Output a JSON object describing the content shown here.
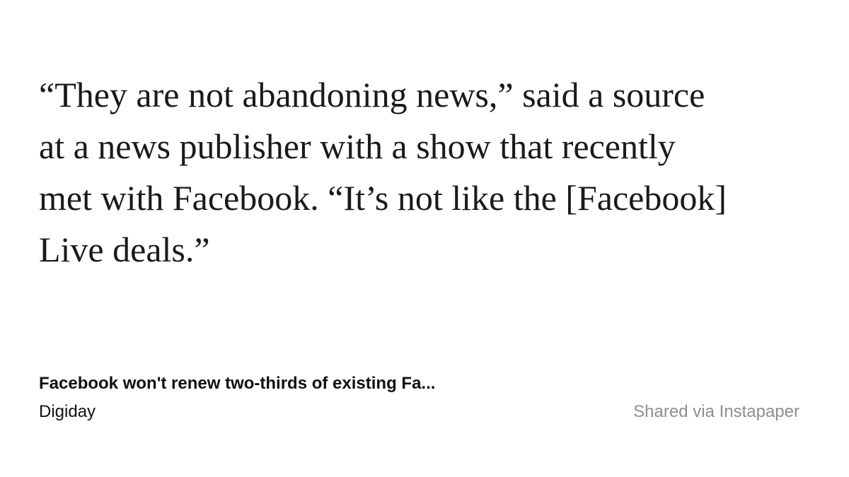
{
  "quote": {
    "lines": [
      "“They are not abandoning news,” said a source",
      "at a news publisher with a show that recently",
      "met with Facebook. “It’s not like the [Facebook]",
      "Live deals.”"
    ]
  },
  "footer": {
    "article_title": "Facebook won't renew two-thirds of existing Fa...",
    "source": "Digiday",
    "shared_via": "Shared via Instapaper"
  },
  "colors": {
    "background": "#ffffff",
    "text": "#1a1a1a",
    "muted": "#8e8e8e"
  }
}
